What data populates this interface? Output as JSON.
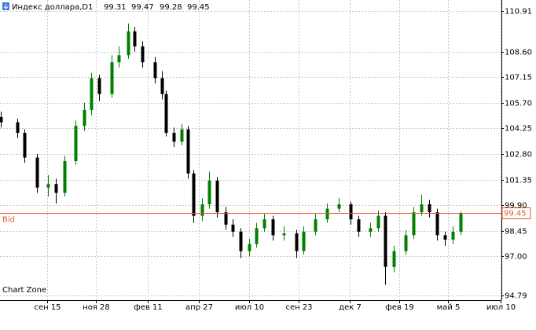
{
  "chart_data": {
    "type": "candlestick",
    "title": "Индекс доллара,D1",
    "header_values": [
      99.31,
      99.47,
      99.28,
      99.45
    ],
    "watermark": "Chart Zone",
    "bid": {
      "label": "Bid",
      "value": 99.45,
      "color": "#e05a2b"
    },
    "x": [
      0,
      17,
      25,
      38,
      50,
      58,
      67,
      79,
      88,
      96,
      104,
      117,
      125,
      135,
      142,
      150,
      163,
      171,
      175,
      183,
      192,
      198,
      204,
      213,
      221,
      229,
      238,
      246,
      254,
      263,
      271,
      279,
      288,
      300,
      313,
      321,
      333,
      346,
      358,
      371,
      379,
      392,
      400,
      408,
      417,
      429,
      438,
      446,
      454,
      463,
      471,
      479,
      488
    ],
    "series": [
      {
        "up_color": "#008000",
        "down_color": "#000000",
        "open": [
          104.9,
          104.6,
          104.0,
          102.6,
          100.9,
          101.1,
          100.6,
          102.4,
          104.4,
          105.3,
          107.1,
          106.2,
          108.0,
          108.4,
          109.75,
          108.9,
          108.0,
          107.1,
          106.2,
          104.0,
          103.5,
          104.2,
          101.7,
          99.3,
          99.95,
          101.3,
          99.5,
          98.8,
          98.4,
          97.3,
          97.7,
          98.6,
          99.1,
          98.2,
          98.3,
          97.3,
          98.4,
          99.1,
          99.7,
          99.95,
          99.1,
          98.4,
          98.6,
          99.3,
          96.4,
          97.3,
          98.2,
          99.5,
          99.95,
          99.5,
          98.2,
          97.95,
          98.4
        ],
        "high": [
          105.2,
          104.8,
          104.2,
          102.8,
          101.6,
          101.4,
          102.7,
          104.7,
          105.7,
          107.4,
          107.3,
          108.4,
          108.9,
          110.2,
          110.0,
          109.2,
          108.3,
          107.5,
          106.4,
          104.3,
          104.5,
          104.4,
          101.9,
          100.3,
          101.8,
          101.5,
          99.8,
          99.1,
          98.6,
          98.0,
          98.9,
          99.4,
          99.3,
          98.7,
          98.5,
          98.7,
          99.4,
          100.0,
          100.3,
          100.1,
          99.3,
          98.9,
          99.6,
          99.5,
          97.6,
          98.5,
          99.8,
          100.5,
          100.2,
          99.7,
          98.4,
          98.7,
          99.55
        ],
        "low": [
          104.3,
          103.7,
          102.3,
          100.6,
          100.4,
          100.0,
          100.4,
          102.2,
          104.1,
          105.0,
          105.8,
          106.0,
          107.7,
          108.2,
          108.6,
          107.7,
          106.8,
          105.9,
          103.8,
          103.2,
          103.3,
          101.4,
          98.9,
          99.0,
          99.7,
          99.2,
          98.5,
          98.1,
          96.9,
          97.0,
          97.5,
          98.4,
          97.9,
          97.9,
          96.9,
          97.1,
          98.2,
          98.9,
          99.5,
          98.8,
          98.1,
          98.1,
          98.4,
          95.4,
          96.1,
          97.1,
          98.0,
          99.3,
          99.2,
          97.9,
          97.6,
          97.7,
          98.2
        ],
        "close": [
          104.6,
          104.0,
          102.6,
          100.9,
          101.1,
          100.6,
          102.4,
          104.4,
          105.3,
          107.1,
          106.2,
          108.0,
          108.4,
          109.75,
          108.9,
          108.0,
          107.1,
          106.2,
          104.0,
          103.5,
          104.2,
          101.7,
          99.3,
          99.95,
          101.3,
          99.5,
          98.8,
          98.4,
          97.3,
          97.7,
          98.6,
          99.1,
          98.2,
          98.3,
          97.3,
          98.4,
          99.1,
          99.7,
          99.95,
          99.1,
          98.4,
          98.6,
          99.3,
          96.4,
          97.3,
          98.2,
          99.5,
          99.95,
          99.5,
          98.2,
          97.95,
          98.4,
          99.45
        ]
      }
    ],
    "xlim": [
      -1,
      531
    ],
    "xticks": [
      {
        "value": 49,
        "label": "сен 15"
      },
      {
        "value": 101,
        "label": "ноя 28"
      },
      {
        "value": 156,
        "label": "фев 11"
      },
      {
        "value": 210,
        "label": "апр 27"
      },
      {
        "value": 263,
        "label": "июл 10"
      },
      {
        "value": 316,
        "label": "сен 23"
      },
      {
        "value": 370,
        "label": "дек 7"
      },
      {
        "value": 423,
        "label": "фев 19"
      },
      {
        "value": 474,
        "label": "май 5"
      },
      {
        "value": 530,
        "label": "июл 10"
      }
    ],
    "ylim": [
      94.52,
      111.53
    ],
    "yticks": [
      110.91,
      {
        "value": 108.6,
        "label": "108.60"
      },
      107.15,
      {
        "value": 105.7,
        "label": "105.70"
      },
      104.25,
      {
        "value": 102.8,
        "label": "102.80"
      },
      101.35,
      {
        "value": 99.9,
        "label": "99.90"
      },
      98.45,
      {
        "value": 97,
        "label": "97.00"
      },
      94.79
    ],
    "grid": true
  }
}
